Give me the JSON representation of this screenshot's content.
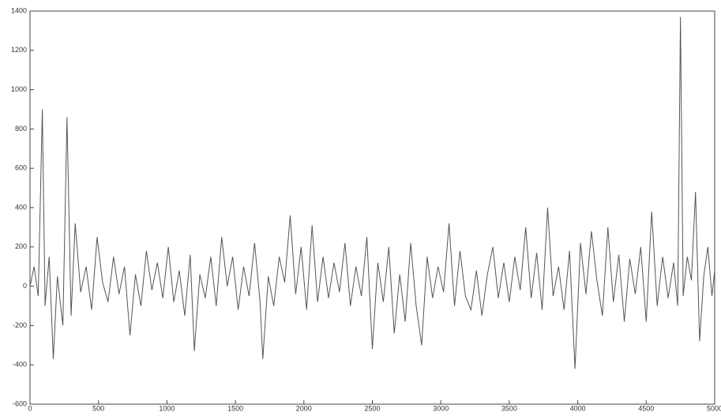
{
  "chart_data": {
    "type": "line",
    "x": [
      0,
      30,
      60,
      90,
      110,
      140,
      170,
      200,
      240,
      270,
      300,
      330,
      370,
      410,
      450,
      490,
      530,
      570,
      610,
      650,
      690,
      730,
      770,
      810,
      850,
      890,
      930,
      970,
      1010,
      1050,
      1090,
      1130,
      1170,
      1200,
      1240,
      1280,
      1320,
      1360,
      1400,
      1440,
      1480,
      1520,
      1560,
      1600,
      1640,
      1680,
      1700,
      1740,
      1780,
      1820,
      1860,
      1900,
      1940,
      1980,
      2020,
      2060,
      2100,
      2140,
      2180,
      2220,
      2260,
      2300,
      2340,
      2380,
      2420,
      2460,
      2500,
      2540,
      2580,
      2620,
      2660,
      2700,
      2740,
      2780,
      2820,
      2860,
      2900,
      2940,
      2980,
      3020,
      3060,
      3100,
      3140,
      3180,
      3220,
      3260,
      3300,
      3340,
      3380,
      3420,
      3460,
      3500,
      3540,
      3580,
      3620,
      3660,
      3700,
      3740,
      3780,
      3820,
      3860,
      3900,
      3940,
      3980,
      4020,
      4060,
      4100,
      4140,
      4180,
      4220,
      4260,
      4300,
      4340,
      4380,
      4420,
      4460,
      4500,
      4540,
      4580,
      4620,
      4660,
      4700,
      4730,
      4750,
      4770,
      4800,
      4830,
      4860,
      4890,
      4920,
      4950,
      4980,
      5000
    ],
    "series": [
      {
        "color": "#555555",
        "values": [
          0,
          100,
          -50,
          900,
          -100,
          150,
          -370,
          50,
          -200,
          860,
          -150,
          320,
          -30,
          100,
          -120,
          250,
          20,
          -80,
          150,
          -40,
          100,
          -250,
          60,
          -100,
          180,
          -20,
          120,
          -60,
          200,
          -80,
          80,
          -150,
          160,
          -330,
          60,
          -60,
          150,
          -100,
          250,
          0,
          150,
          -120,
          100,
          -50,
          220,
          -80,
          -370,
          50,
          -100,
          150,
          20,
          360,
          -40,
          200,
          -120,
          310,
          -80,
          150,
          -60,
          120,
          -30,
          220,
          -100,
          100,
          -50,
          250,
          -320,
          120,
          -80,
          200,
          -240,
          60,
          -180,
          220,
          -100,
          -300,
          150,
          -60,
          100,
          -30,
          320,
          -100,
          180,
          -50,
          -120,
          80,
          -150,
          60,
          200,
          -60,
          120,
          -80,
          150,
          -20,
          300,
          -60,
          170,
          -120,
          400,
          -50,
          100,
          -120,
          180,
          -420,
          220,
          -40,
          280,
          30,
          -150,
          300,
          -80,
          160,
          -180,
          140,
          -40,
          200,
          -180,
          380,
          -100,
          150,
          -60,
          120,
          -100,
          1370,
          -50,
          150,
          30,
          480,
          -280,
          50,
          200,
          -50,
          80
        ]
      }
    ],
    "xlim": [
      0,
      5000
    ],
    "xticks": [
      0,
      500,
      1000,
      1500,
      2000,
      2500,
      3000,
      3500,
      4000,
      4500,
      5000
    ],
    "ylim": [
      -600,
      1400
    ],
    "yticks": [
      -600,
      -400,
      -200,
      0,
      200,
      400,
      600,
      800,
      1000,
      1200,
      1400
    ]
  }
}
